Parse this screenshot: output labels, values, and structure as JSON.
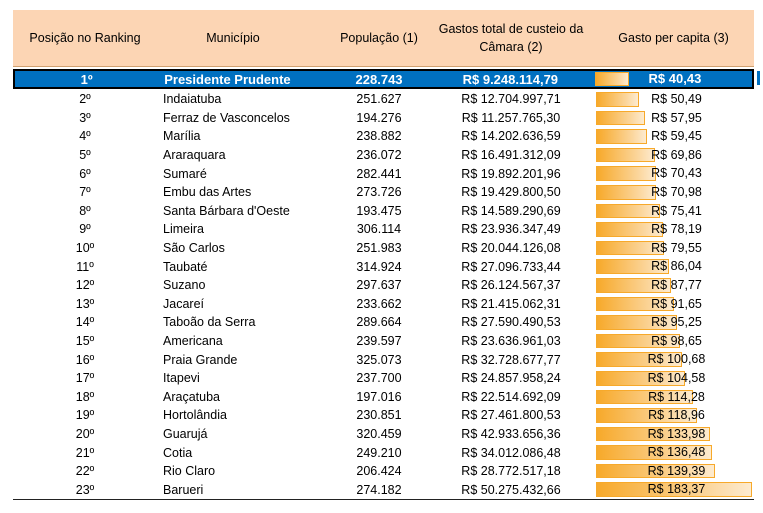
{
  "header": {
    "rank": "Posição no Ranking",
    "municipio": "Município",
    "populacao": "População (1)",
    "gastos_line1": "Gastos total de custeio da",
    "gastos_line2": "Câmara (2)",
    "percapita": "Gasto per capita (3)"
  },
  "rows": [
    {
      "rank": "1º",
      "municipio": "Presidente Prudente",
      "populacao": "228.743",
      "gastos": "R$ 9.248.114,79",
      "percapita": "R$ 40,43",
      "value": 40.43,
      "highlight": true
    },
    {
      "rank": "2º",
      "municipio": "Indaiatuba",
      "populacao": "251.627",
      "gastos": "R$ 12.704.997,71",
      "percapita": "R$ 50,49",
      "value": 50.49
    },
    {
      "rank": "3º",
      "municipio": "Ferraz de Vasconcelos",
      "populacao": "194.276",
      "gastos": "R$ 11.257.765,30",
      "percapita": "R$ 57,95",
      "value": 57.95
    },
    {
      "rank": "4º",
      "municipio": "Marília",
      "populacao": "238.882",
      "gastos": "R$ 14.202.636,59",
      "percapita": "R$ 59,45",
      "value": 59.45
    },
    {
      "rank": "5º",
      "municipio": "Araraquara",
      "populacao": "236.072",
      "gastos": "R$ 16.491.312,09",
      "percapita": "R$ 69,86",
      "value": 69.86
    },
    {
      "rank": "6º",
      "municipio": "Sumaré",
      "populacao": "282.441",
      "gastos": "R$ 19.892.201,96",
      "percapita": "R$ 70,43",
      "value": 70.43
    },
    {
      "rank": "7º",
      "municipio": "Embu das Artes",
      "populacao": "273.726",
      "gastos": "R$ 19.429.800,50",
      "percapita": "R$ 70,98",
      "value": 70.98
    },
    {
      "rank": "8º",
      "municipio": "Santa Bárbara d'Oeste",
      "populacao": "193.475",
      "gastos": "R$ 14.589.290,69",
      "percapita": "R$ 75,41",
      "value": 75.41
    },
    {
      "rank": "9º",
      "municipio": "Limeira",
      "populacao": "306.114",
      "gastos": "R$ 23.936.347,49",
      "percapita": "R$ 78,19",
      "value": 78.19
    },
    {
      "rank": "10º",
      "municipio": "São Carlos",
      "populacao": "251.983",
      "gastos": "R$ 20.044.126,08",
      "percapita": "R$ 79,55",
      "value": 79.55
    },
    {
      "rank": "11º",
      "municipio": "Taubaté",
      "populacao": "314.924",
      "gastos": "R$ 27.096.733,44",
      "percapita": "R$ 86,04",
      "value": 86.04
    },
    {
      "rank": "12º",
      "municipio": "Suzano",
      "populacao": "297.637",
      "gastos": "R$ 26.124.567,37",
      "percapita": "R$ 87,77",
      "value": 87.77
    },
    {
      "rank": "13º",
      "municipio": "Jacareí",
      "populacao": "233.662",
      "gastos": "R$ 21.415.062,31",
      "percapita": "R$ 91,65",
      "value": 91.65
    },
    {
      "rank": "14º",
      "municipio": "Taboão da Serra",
      "populacao": "289.664",
      "gastos": "R$ 27.590.490,53",
      "percapita": "R$ 95,25",
      "value": 95.25
    },
    {
      "rank": "15º",
      "municipio": "Americana",
      "populacao": "239.597",
      "gastos": "R$ 23.636.961,03",
      "percapita": "R$ 98,65",
      "value": 98.65
    },
    {
      "rank": "16º",
      "municipio": "Praia Grande",
      "populacao": "325.073",
      "gastos": "R$ 32.728.677,77",
      "percapita": "R$ 100,68",
      "value": 100.68
    },
    {
      "rank": "17º",
      "municipio": "Itapevi",
      "populacao": "237.700",
      "gastos": "R$ 24.857.958,24",
      "percapita": "R$ 104,58",
      "value": 104.58
    },
    {
      "rank": "18º",
      "municipio": "Araçatuba",
      "populacao": "197.016",
      "gastos": "R$ 22.514.692,09",
      "percapita": "R$ 114,28",
      "value": 114.28
    },
    {
      "rank": "19º",
      "municipio": "Hortolândia",
      "populacao": "230.851",
      "gastos": "R$ 27.461.800,53",
      "percapita": "R$ 118,96",
      "value": 118.96
    },
    {
      "rank": "20º",
      "municipio": "Guarujá",
      "populacao": "320.459",
      "gastos": "R$ 42.933.656,36",
      "percapita": "R$ 133,98",
      "value": 133.98
    },
    {
      "rank": "21º",
      "municipio": "Cotia",
      "populacao": "249.210",
      "gastos": "R$ 34.012.086,48",
      "percapita": "R$ 136,48",
      "value": 136.48
    },
    {
      "rank": "22º",
      "municipio": "Rio Claro",
      "populacao": "206.424",
      "gastos": "R$ 28.772.517,18",
      "percapita": "R$ 139,39",
      "value": 139.39
    },
    {
      "rank": "23º",
      "municipio": "Barueri",
      "populacao": "274.182",
      "gastos": "R$ 50.275.432,66",
      "percapita": "R$ 183,37",
      "value": 183.37
    }
  ],
  "colors": {
    "header_bg": "#fcd5b4",
    "highlight_bg": "#0070c0",
    "bar": "#f7a92a"
  }
}
